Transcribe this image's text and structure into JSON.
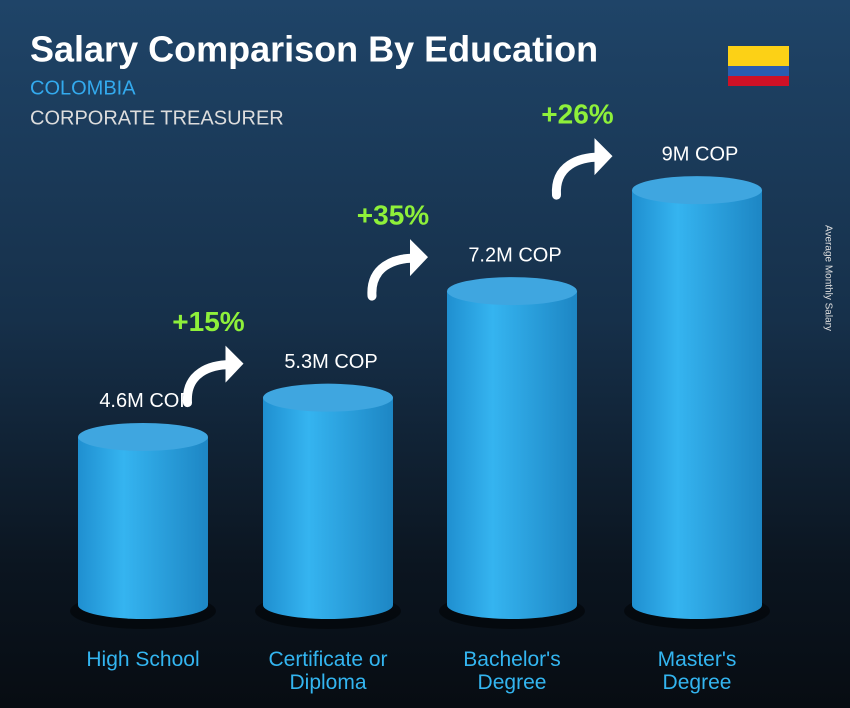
{
  "chart_data": {
    "type": "cylinder-bar",
    "title": "Salary Comparison By Education",
    "subtitle": "COLOMBIA",
    "job_title": "CORPORATE TREASURER",
    "y_label": "Average Monthly Salary",
    "categories": [
      "High School",
      "Certificate or Diploma",
      "Bachelor's Degree",
      "Master's Degree"
    ],
    "values": [
      4.6,
      5.3,
      7.2,
      9
    ],
    "value_labels": [
      "4.6M COP",
      "5.3M COP",
      "7.2M COP",
      "9M COP"
    ],
    "color": "#29a8e8",
    "annotations": [
      "+15%",
      "+35%",
      "+26%"
    ]
  }
}
